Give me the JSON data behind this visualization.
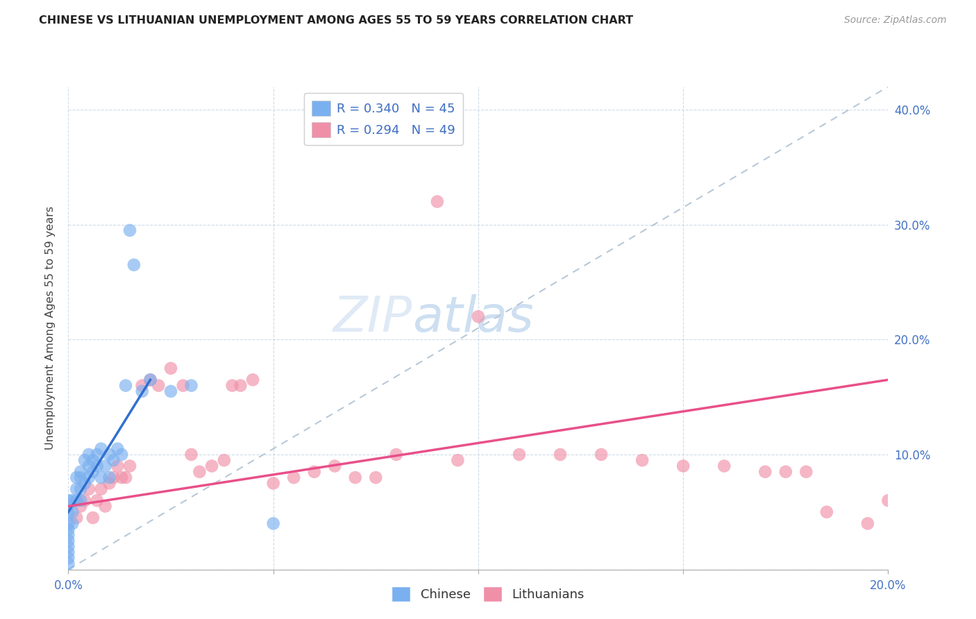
{
  "title": "CHINESE VS LITHUANIAN UNEMPLOYMENT AMONG AGES 55 TO 59 YEARS CORRELATION CHART",
  "source": "Source: ZipAtlas.com",
  "ylabel": "Unemployment Among Ages 55 to 59 years",
  "xlim": [
    0.0,
    0.2
  ],
  "ylim": [
    0.0,
    0.42
  ],
  "xtick_positions": [
    0.0,
    0.05,
    0.1,
    0.15,
    0.2
  ],
  "xtick_labels": [
    "0.0%",
    "",
    "",
    "",
    "20.0%"
  ],
  "ytick_positions": [
    0.0,
    0.1,
    0.2,
    0.3,
    0.4
  ],
  "ytick_labels_right": [
    "",
    "10.0%",
    "20.0%",
    "30.0%",
    "40.0%"
  ],
  "chinese_color": "#7ab0f0",
  "lithuanian_color": "#f090a8",
  "trendline_diagonal_color": "#b8c8d8",
  "trendline_chinese_color": "#3070d0",
  "trendline_lithuanian_color": "#e8508a",
  "watermark_zip": "ZIP",
  "watermark_atlas": "atlas",
  "chinese_R": "0.340",
  "chinese_N": "45",
  "lithuanian_R": "0.294",
  "lithuanian_N": "49",
  "chinese_x": [
    0.0,
    0.0,
    0.0,
    0.0,
    0.0,
    0.0,
    0.0,
    0.0,
    0.0,
    0.0,
    0.001,
    0.001,
    0.001,
    0.002,
    0.002,
    0.002,
    0.003,
    0.003,
    0.003,
    0.003,
    0.004,
    0.004,
    0.005,
    0.005,
    0.005,
    0.006,
    0.006,
    0.007,
    0.007,
    0.008,
    0.008,
    0.009,
    0.01,
    0.01,
    0.011,
    0.012,
    0.013,
    0.014,
    0.015,
    0.016,
    0.018,
    0.02,
    0.025,
    0.03,
    0.05
  ],
  "chinese_y": [
    0.05,
    0.02,
    0.06,
    0.04,
    0.035,
    0.03,
    0.025,
    0.015,
    0.01,
    0.005,
    0.06,
    0.05,
    0.04,
    0.08,
    0.07,
    0.06,
    0.085,
    0.08,
    0.07,
    0.06,
    0.095,
    0.075,
    0.1,
    0.09,
    0.08,
    0.095,
    0.085,
    0.1,
    0.09,
    0.105,
    0.08,
    0.09,
    0.1,
    0.08,
    0.095,
    0.105,
    0.1,
    0.16,
    0.295,
    0.265,
    0.155,
    0.165,
    0.155,
    0.16,
    0.04
  ],
  "lithuanian_x": [
    0.0,
    0.002,
    0.003,
    0.004,
    0.005,
    0.006,
    0.007,
    0.008,
    0.009,
    0.01,
    0.011,
    0.012,
    0.013,
    0.014,
    0.015,
    0.018,
    0.02,
    0.022,
    0.025,
    0.028,
    0.03,
    0.032,
    0.035,
    0.038,
    0.04,
    0.042,
    0.045,
    0.05,
    0.055,
    0.06,
    0.065,
    0.07,
    0.075,
    0.08,
    0.09,
    0.095,
    0.1,
    0.11,
    0.12,
    0.13,
    0.14,
    0.15,
    0.16,
    0.17,
    0.175,
    0.18,
    0.185,
    0.195,
    0.2
  ],
  "lithuanian_y": [
    0.055,
    0.045,
    0.055,
    0.06,
    0.07,
    0.045,
    0.06,
    0.07,
    0.055,
    0.075,
    0.08,
    0.09,
    0.08,
    0.08,
    0.09,
    0.16,
    0.165,
    0.16,
    0.175,
    0.16,
    0.1,
    0.085,
    0.09,
    0.095,
    0.16,
    0.16,
    0.165,
    0.075,
    0.08,
    0.085,
    0.09,
    0.08,
    0.08,
    0.1,
    0.32,
    0.095,
    0.22,
    0.1,
    0.1,
    0.1,
    0.095,
    0.09,
    0.09,
    0.085,
    0.085,
    0.085,
    0.05,
    0.04,
    0.06
  ],
  "chinese_trend_x": [
    0.0,
    0.02
  ],
  "chinese_trend_y": [
    0.05,
    0.165
  ],
  "lithuanian_trend_x": [
    0.0,
    0.2
  ],
  "lithuanian_trend_y": [
    0.055,
    0.165
  ]
}
